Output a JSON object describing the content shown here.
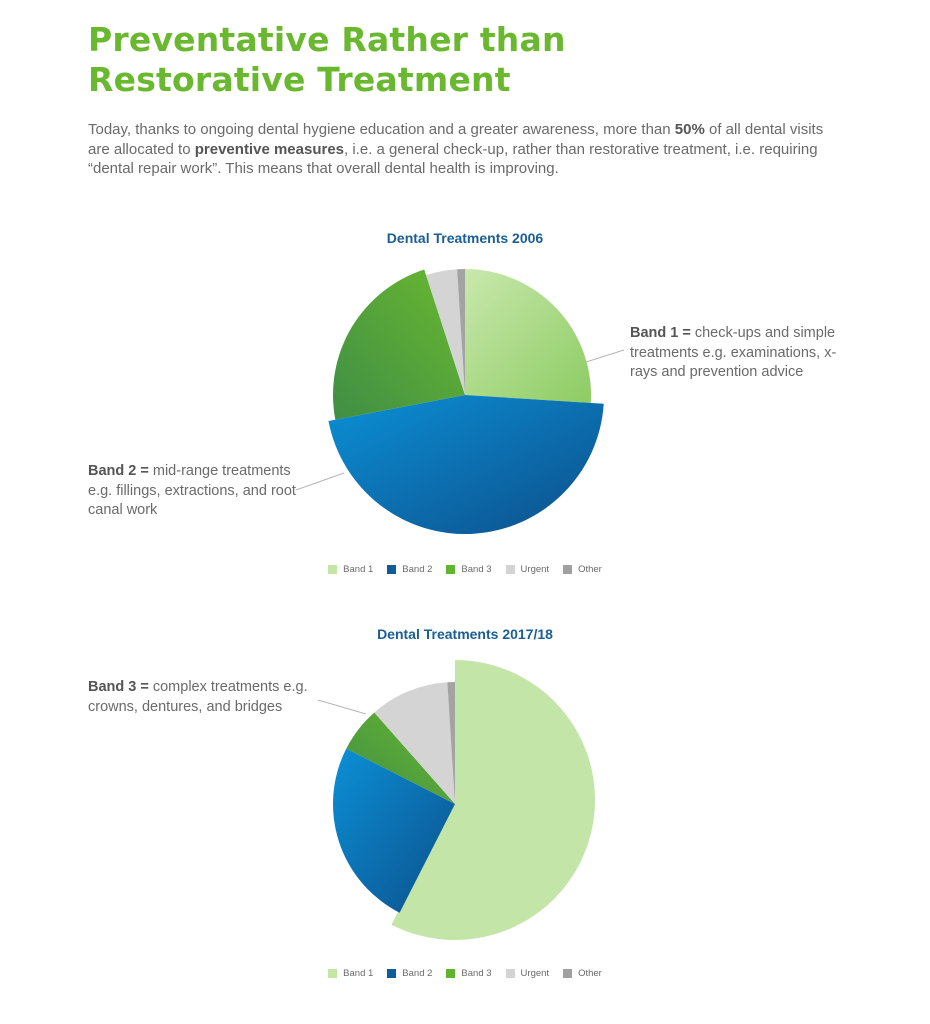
{
  "title_line1": "Preventative Rather than",
  "title_line2": "Restorative Treatment",
  "intro": {
    "p1": "Today, thanks to ongoing dental hygiene education and a greater awareness, more than ",
    "b1": "50%",
    "p2": " of all dental visits are allocated to ",
    "b2": "preventive measures",
    "p3": ", i.e. a general check-up, rather than restorative treatment, i.e.  requiring “dental repair work”. This means that overall dental health is improving."
  },
  "annotations": {
    "band1": {
      "bold": "Band 1 =",
      "text": " check-ups and simple treatments e.g. examinations, x-rays and prevention advice"
    },
    "band2": {
      "bold": "Band 2 =",
      "text": " mid-range treatments e.g. fillings, extractions, and root canal work"
    },
    "band3": {
      "bold": "Band 3 =",
      "text": " complex treatments e.g. crowns, dentures, and bridges"
    }
  },
  "colors": {
    "band1": [
      "#c9e8ad",
      "#8dcc63"
    ],
    "band2": [
      "#0b90d6",
      "#0c4f8a"
    ],
    "band3": [
      "#6ab82f",
      "#3f8e46"
    ],
    "urgent": "#d4d4d4",
    "other": "#a3a3a3",
    "band1_flat": "#c4e5a8",
    "legend": [
      "#c4e5a8",
      "#0e5c98",
      "#62b330",
      "#d4d4d4",
      "#a0a0a0"
    ]
  },
  "chart_data": [
    {
      "type": "pie",
      "title": "Dental Treatments 2006",
      "categories": [
        "Band 1",
        "Band 2",
        "Band 3",
        "Urgent",
        "Other"
      ],
      "values": [
        26,
        46,
        23,
        4,
        1
      ],
      "legend_position": "bottom"
    },
    {
      "type": "pie",
      "title": "Dental Treatments 2017/18",
      "categories": [
        "Band 1",
        "Band 2",
        "Band 3",
        "Urgent",
        "Other"
      ],
      "values": [
        57.5,
        25,
        6,
        10.5,
        1
      ],
      "legend_position": "bottom"
    }
  ]
}
